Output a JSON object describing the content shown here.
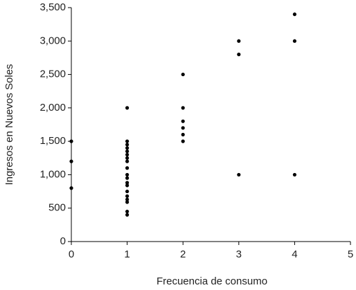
{
  "chart_data": {
    "type": "scatter",
    "x_label": "Frecuencia de consumo",
    "y_label": "Ingresos en Nuevos Soles",
    "x": [
      0,
      0,
      0,
      1,
      1,
      1,
      1,
      1,
      1,
      1,
      1,
      1,
      1,
      1,
      1,
      1,
      1,
      1,
      1,
      1,
      1,
      1,
      2,
      2,
      2,
      2,
      2,
      2,
      3,
      3,
      3,
      4,
      4,
      4
    ],
    "values": [
      1500,
      1200,
      800,
      2000,
      1500,
      1450,
      1400,
      1350,
      1300,
      1250,
      1200,
      1100,
      1000,
      950,
      880,
      840,
      750,
      680,
      630,
      590,
      450,
      400,
      2500,
      2000,
      1800,
      1700,
      1600,
      1500,
      3000,
      2800,
      1000,
      3400,
      3000,
      1000
    ],
    "color": "#000000",
    "xlim": [
      0,
      5
    ],
    "xticks": [
      0,
      1,
      2,
      3,
      4,
      5
    ],
    "ylim": [
      0,
      3500
    ],
    "yticks": [
      0,
      500,
      {
        "value": 1000,
        "label": "1,000"
      },
      {
        "value": 1500,
        "label": "1,500"
      },
      {
        "value": 2000,
        "label": "2,000"
      },
      {
        "value": 2500,
        "label": "2,500"
      },
      {
        "value": 3000,
        "label": "3,000"
      },
      {
        "value": 3500,
        "label": "3,500"
      }
    ]
  }
}
